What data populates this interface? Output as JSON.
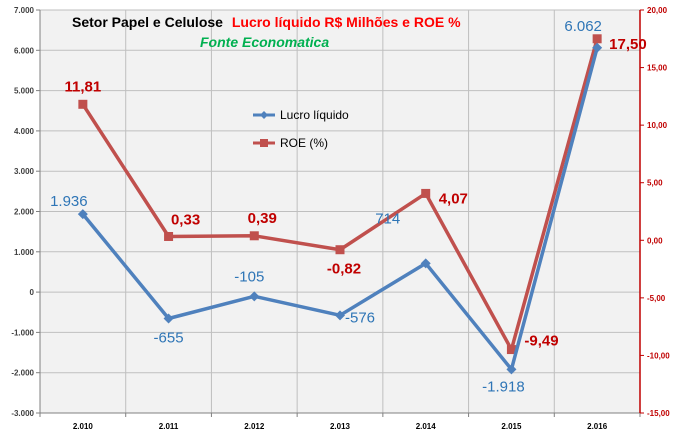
{
  "title_part1": "Setor Papel e Celulose",
  "title_part2": "Lucro líquido R$ Milhões e ROE %",
  "subtitle": "Fonte Economatica",
  "colors": {
    "plot_bg": "#F2F2F2",
    "lucro": "#4F81BD",
    "lucro_label": "#2E75B6",
    "roe": "#C0504D",
    "roe_label": "#C00000",
    "left_axis": "#404040",
    "right_axis": "#C00000",
    "title_red": "#FF0000",
    "subtitle_green": "#00B050"
  },
  "chart_data": {
    "type": "line",
    "categories": [
      "2.010",
      "2.011",
      "2.012",
      "2.013",
      "2.014",
      "2.015",
      "2.016"
    ],
    "series": [
      {
        "name": "Lucro líquido",
        "axis": "left",
        "values": [
          1936,
          -655,
          -105,
          -576,
          714,
          -1918,
          6062
        ],
        "labels": [
          "1.936",
          "-655",
          "-105",
          "-576",
          "714",
          "-1.918",
          "6.062"
        ]
      },
      {
        "name": "ROE  (%)",
        "axis": "right",
        "values": [
          11.81,
          0.33,
          0.39,
          -0.82,
          4.07,
          -9.49,
          17.5
        ],
        "labels": [
          "11,81",
          "0,33",
          "0,39",
          "-0,82",
          "4,07",
          "-9,49",
          "17,50"
        ]
      }
    ],
    "y_left": {
      "ylim": [
        -3000,
        7000
      ],
      "ticks": [
        -3000,
        -2000,
        -1000,
        0,
        1000,
        2000,
        3000,
        4000,
        5000,
        6000,
        7000
      ],
      "tick_labels": [
        "-3.000",
        "-2.000",
        "-1.000",
        "0",
        "1.000",
        "2.000",
        "3.000",
        "4.000",
        "5.000",
        "6.000",
        "7.000"
      ]
    },
    "y_right": {
      "ylim": [
        -15,
        20
      ],
      "ticks": [
        -15,
        -10,
        -5,
        0,
        5,
        10,
        15,
        20
      ],
      "tick_labels": [
        "-15,00",
        "-10,00",
        "-5,00",
        "0,00",
        "5,00",
        "10,00",
        "15,00",
        "20,00"
      ]
    },
    "grid": true,
    "legend": "inside-top-center"
  }
}
